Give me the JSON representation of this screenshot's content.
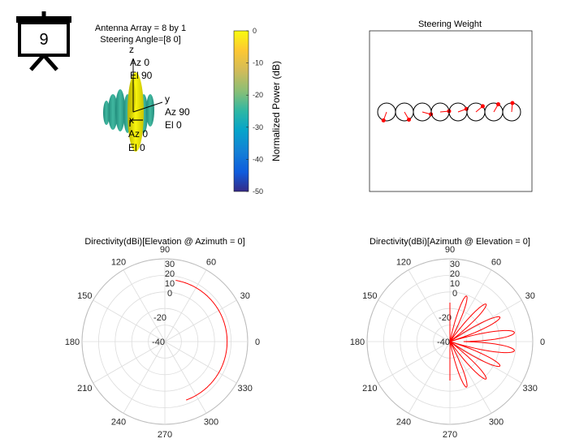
{
  "icon": {
    "name": "presentation-board-icon",
    "number": "9"
  },
  "pattern3d": {
    "title_line1": "Antenna Array = 8 by 1",
    "title_line2": "Steering Angle=[8 0]",
    "axes": {
      "z": {
        "letter": "z",
        "az": "Az 0",
        "el": "El 90"
      },
      "y": {
        "letter": "y",
        "az": "Az 90",
        "el": "El 0"
      },
      "x": {
        "letter": "x",
        "az": "Az 0",
        "el": "El 0"
      }
    },
    "colorbar": {
      "label": "Normalized Power (dB)",
      "ticks": [
        "0",
        "-10",
        "-20",
        "-30",
        "-40",
        "-50"
      ],
      "range": [
        -50,
        0
      ]
    }
  },
  "chart_data": [
    {
      "type": "scatter",
      "title": "Steering Weight",
      "elements": 8,
      "weight_phase_deg": [
        -110,
        -60,
        -15,
        5,
        20,
        40,
        60,
        85
      ]
    },
    {
      "type": "line",
      "subtype": "polar",
      "title": "Directivity(dBi)[Elevation @ Azimuth = 0]",
      "angle_ticks": [
        "0",
        "30",
        "60",
        "90",
        "120",
        "150",
        "180",
        "210",
        "240",
        "270",
        "300",
        "330"
      ],
      "r_ticks": [
        "30",
        "20",
        "10",
        "0",
        "-20",
        "-40"
      ],
      "series": [
        {
          "angle_deg": [
            -70,
            -50,
            -30,
            -10,
            0,
            10,
            30,
            50,
            70,
            80
          ],
          "r": [
            12.6,
            12.6,
            12.6,
            12.6,
            12.6,
            12.6,
            12.6,
            12.6,
            12.6,
            12.6
          ]
        }
      ],
      "color": "#ff0000"
    },
    {
      "type": "line",
      "subtype": "polar",
      "title": "Directivity(dBi)[Azimuth @ Elevation = 0]",
      "angle_ticks": [
        "0",
        "30",
        "60",
        "90",
        "120",
        "150",
        "180",
        "210",
        "240",
        "270",
        "300",
        "330"
      ],
      "r_ticks": [
        "30",
        "20",
        "10",
        "0",
        "-20",
        "-40"
      ],
      "series": [
        {
          "lobes": [
            {
              "center_deg": 8,
              "peak": 15
            },
            {
              "center_deg": -8,
              "peak": 15
            },
            {
              "center_deg": 26,
              "peak": 7
            },
            {
              "center_deg": -26,
              "peak": 7
            },
            {
              "center_deg": 46,
              "peak": 4
            },
            {
              "center_deg": -46,
              "peak": 4
            },
            {
              "center_deg": 70,
              "peak": 1
            },
            {
              "center_deg": -70,
              "peak": 1
            }
          ]
        }
      ],
      "color": "#ff0000"
    }
  ],
  "colors": {
    "line": "#ff0000",
    "grid": "#dcdcdc",
    "axis": "#262626"
  }
}
